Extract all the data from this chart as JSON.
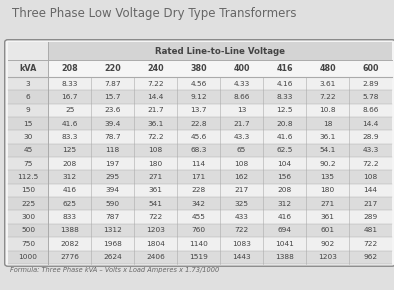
{
  "title": "Three Phase Low Voltage Dry Type Transformers",
  "subtitle_row": "Rated Line-to-Line Voltage",
  "formula": "Formula: Three Phase kVA – Volts x Load Amperes x 1.73/1000",
  "col_header": [
    "kVA",
    "208",
    "220",
    "240",
    "380",
    "400",
    "416",
    "480",
    "600"
  ],
  "rows": [
    [
      "3",
      "8.33",
      "7.87",
      "7.22",
      "4.56",
      "4.33",
      "4.16",
      "3.61",
      "2.89"
    ],
    [
      "6",
      "16.7",
      "15.7",
      "14.4",
      "9.12",
      "8.66",
      "8.33",
      "7.22",
      "5.78"
    ],
    [
      "9",
      "25",
      "23.6",
      "21.7",
      "13.7",
      "13",
      "12.5",
      "10.8",
      "8.66"
    ],
    [
      "15",
      "41.6",
      "39.4",
      "36.1",
      "22.8",
      "21.7",
      "20.8",
      "18",
      "14.4"
    ],
    [
      "30",
      "83.3",
      "78.7",
      "72.2",
      "45.6",
      "43.3",
      "41.6",
      "36.1",
      "28.9"
    ],
    [
      "45",
      "125",
      "118",
      "108",
      "68.3",
      "65",
      "62.5",
      "54.1",
      "43.3"
    ],
    [
      "75",
      "208",
      "197",
      "180",
      "114",
      "108",
      "104",
      "90.2",
      "72.2"
    ],
    [
      "112.5",
      "312",
      "295",
      "271",
      "171",
      "162",
      "156",
      "135",
      "108"
    ],
    [
      "150",
      "416",
      "394",
      "361",
      "228",
      "217",
      "208",
      "180",
      "144"
    ],
    [
      "225",
      "625",
      "590",
      "541",
      "342",
      "325",
      "312",
      "271",
      "217"
    ],
    [
      "300",
      "833",
      "787",
      "722",
      "455",
      "433",
      "416",
      "361",
      "289"
    ],
    [
      "500",
      "1388",
      "1312",
      "1203",
      "760",
      "722",
      "694",
      "601",
      "481"
    ],
    [
      "750",
      "2082",
      "1968",
      "1804",
      "1140",
      "1083",
      "1041",
      "902",
      "722"
    ],
    [
      "1000",
      "2776",
      "2624",
      "2406",
      "1519",
      "1443",
      "1388",
      "1203",
      "962"
    ]
  ],
  "bg_color": "#e8e8e8",
  "fig_bg": "#e0e0e0",
  "title_color": "#666666",
  "subtitle_bg": "#d4d4d4",
  "col_header_bg": "#ffffff",
  "row_alt_color": "#dcdcdc",
  "row_white": "#f0f0f0",
  "kva_col_bg_even": "#e0e0e0",
  "kva_col_bg_odd": "#d4d4d4",
  "border_color": "#aaaaaa",
  "text_color": "#444444",
  "formula_color": "#666666",
  "table_border_color": "#888888"
}
